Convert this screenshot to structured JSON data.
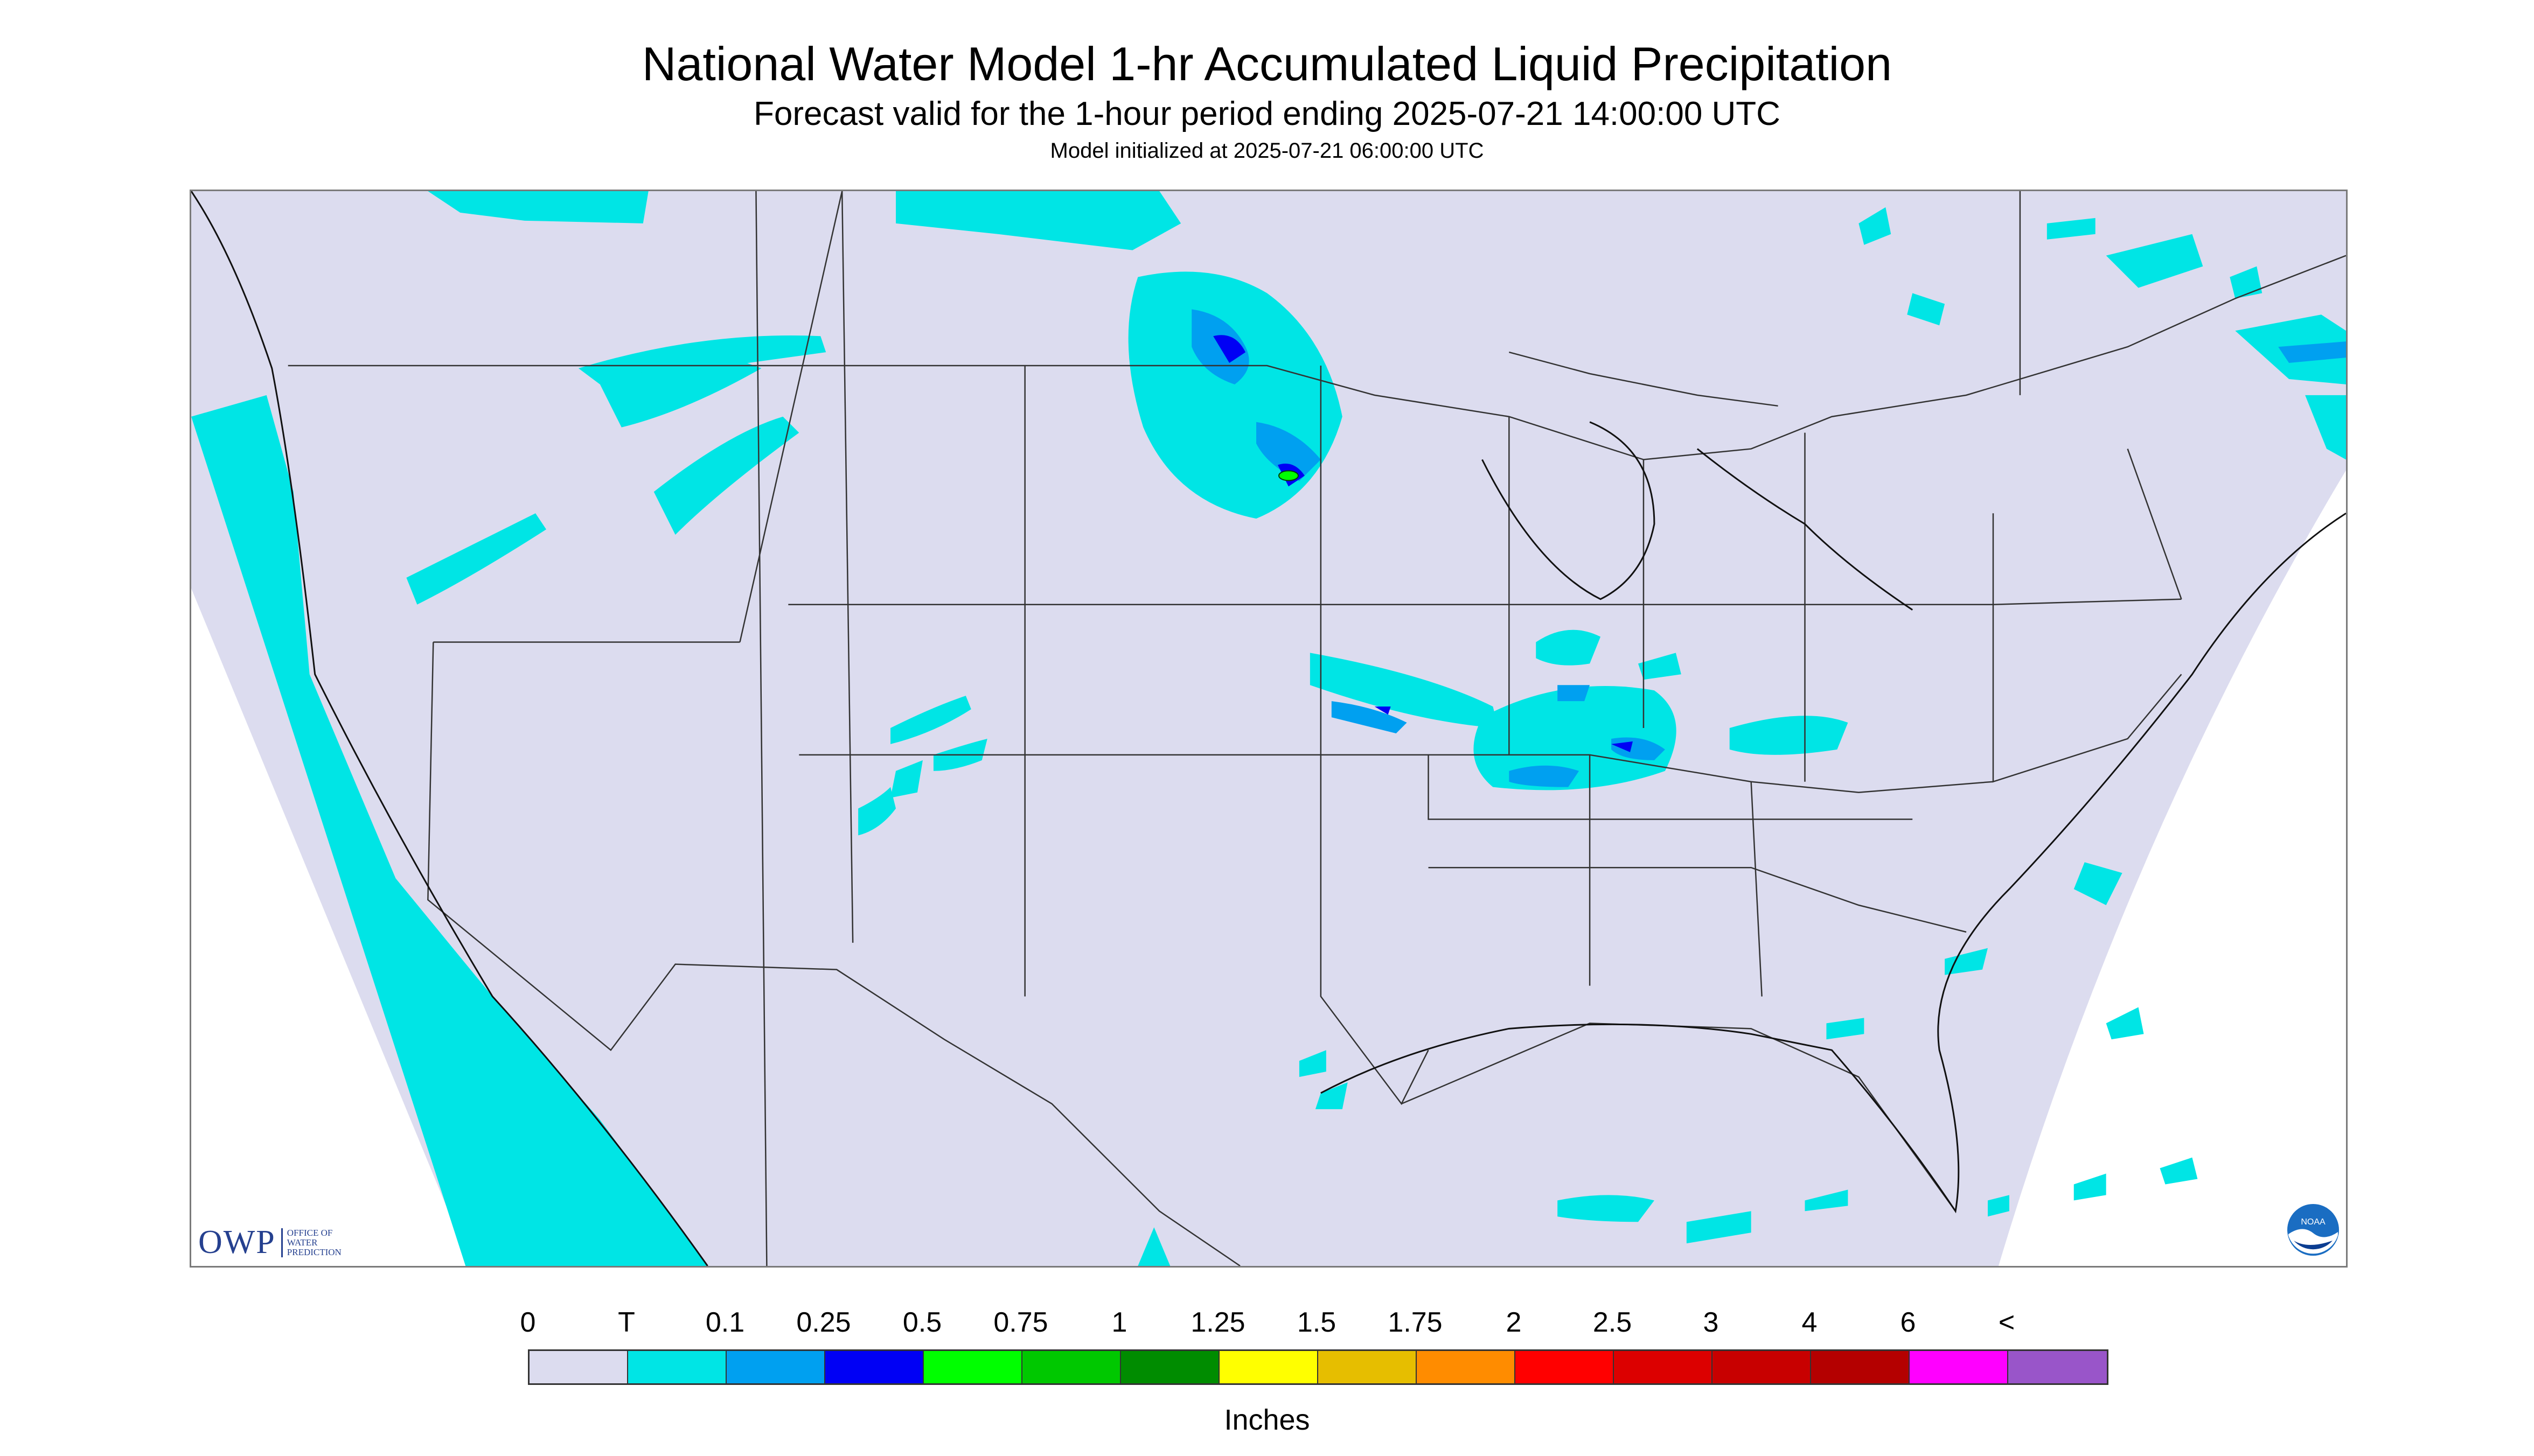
{
  "header": {
    "title": "National Water Model 1-hr Accumulated Liquid Precipitation",
    "subtitle": "Forecast valid for the 1-hour period ending 2025-07-21 14:00:00 UTC",
    "init": "Model initialized at 2025-07-21 06:00:00 UTC"
  },
  "logos": {
    "owp_big": "OWP",
    "owp_small": [
      "OFFICE OF",
      "WATER",
      "PREDICTION"
    ],
    "noaa": "NOAA"
  },
  "legend": {
    "labels": [
      "0",
      "T",
      "0.1",
      "0.25",
      "0.5",
      "0.75",
      "1",
      "1.25",
      "1.5",
      "1.75",
      "2",
      "2.5",
      "3",
      "4",
      "6",
      "<"
    ],
    "colors": [
      "#dcdcef",
      "#00e5e5",
      "#00a0f0",
      "#0000f5",
      "#00ff00",
      "#00c800",
      "#008c00",
      "#ffff00",
      "#e6be00",
      "#ff8c00",
      "#ff0000",
      "#dc0000",
      "#c80000",
      "#b40000",
      "#ff00ff",
      "#9955c9"
    ],
    "units": "Inches"
  },
  "map_colors": {
    "background": "#dcdcef",
    "outside": "#ffffff",
    "trace": "#00e5e5",
    "light": "#00a0f0",
    "moderate": "#0000f5",
    "heavy": "#00ff00",
    "border": "#333333"
  }
}
